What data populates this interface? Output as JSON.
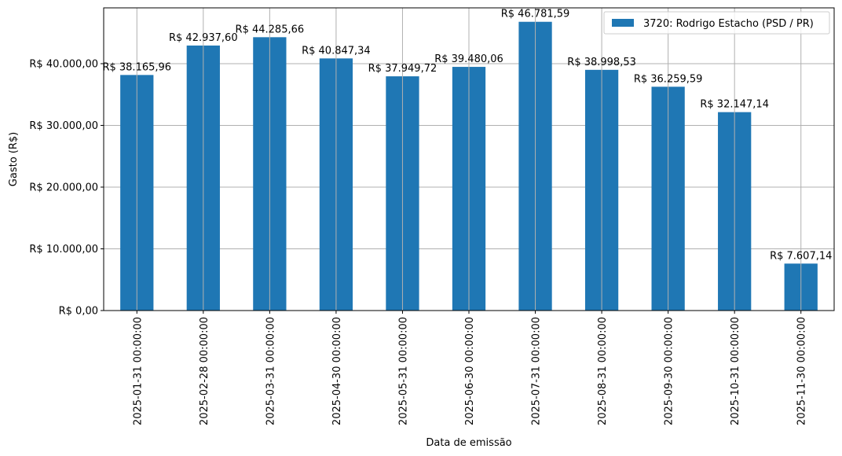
{
  "chart_data": {
    "type": "bar",
    "title": "",
    "xlabel": "Data de emissão",
    "ylabel": "Gasto (R$)",
    "categories": [
      "2025-01-31 00:00:00",
      "2025-02-28 00:00:00",
      "2025-03-31 00:00:00",
      "2025-04-30 00:00:00",
      "2025-05-31 00:00:00",
      "2025-06-30 00:00:00",
      "2025-07-31 00:00:00",
      "2025-08-31 00:00:00",
      "2025-09-30 00:00:00",
      "2025-10-31 00:00:00",
      "2025-11-30 00:00:00"
    ],
    "series": [
      {
        "name": "3720: Rodrigo Estacho (PSD / PR)",
        "color": "#1f77b4",
        "values": [
          38165.96,
          42937.6,
          44285.66,
          40847.34,
          37949.72,
          39480.06,
          46781.59,
          38998.53,
          36259.59,
          32147.14,
          7607.14
        ],
        "labels": [
          "R$ 38.165,96",
          "R$ 42.937,60",
          "R$ 44.285,66",
          "R$ 40.847,34",
          "R$ 37.949,72",
          "R$ 39.480,06",
          "R$ 46.781,59",
          "R$ 38.998,53",
          "R$ 36.259,59",
          "R$ 32.147,14",
          "R$ 7.607,14"
        ]
      }
    ],
    "yticks": [
      0,
      10000,
      20000,
      30000,
      40000
    ],
    "ytick_labels": [
      "R$ 0,00",
      "R$ 10.000,00",
      "R$ 20.000,00",
      "R$ 30.000,00",
      "R$ 40.000,00"
    ],
    "ylim": [
      0,
      49040
    ],
    "grid": true,
    "legend_position": "upper right"
  },
  "legend": {
    "label": "3720: Rodrigo Estacho (PSD / PR)"
  }
}
